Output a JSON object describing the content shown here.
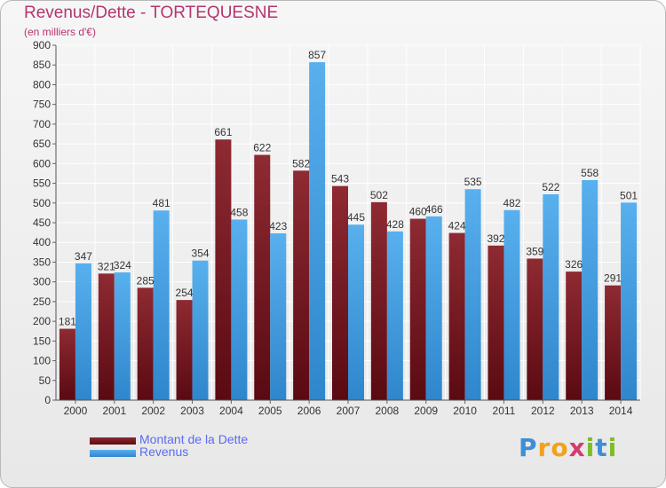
{
  "chart_data": {
    "type": "bar",
    "title": "Revenus/Dette - TORTEQUESNE",
    "subtitle": "(en milliers d'€)",
    "categories": [
      "2000",
      "2001",
      "2002",
      "2003",
      "2004",
      "2005",
      "2006",
      "2007",
      "2008",
      "2009",
      "2010",
      "2011",
      "2012",
      "2013",
      "2014"
    ],
    "series": [
      {
        "name": "Montant de la Dette",
        "color": "#7a1c24",
        "values": [
          181,
          321,
          285,
          254,
          661,
          622,
          582,
          543,
          502,
          460,
          424,
          392,
          359,
          326,
          291
        ]
      },
      {
        "name": "Revenus",
        "color": "#3f9ee0",
        "values": [
          347,
          324,
          481,
          354,
          458,
          423,
          857,
          445,
          428,
          466,
          535,
          482,
          522,
          558,
          501
        ]
      }
    ],
    "ylim": [
      0,
      900
    ],
    "yticks": [
      0,
      50,
      100,
      150,
      200,
      250,
      300,
      350,
      400,
      450,
      500,
      550,
      600,
      650,
      700,
      750,
      800,
      850,
      900
    ],
    "grid": true,
    "legend_position": "bottom-left"
  },
  "logo": {
    "letters": [
      "P",
      "r",
      "o",
      "x",
      "i",
      "t",
      "i"
    ],
    "colors": [
      "#3d8fd6",
      "#f2a21a",
      "#f2a21a",
      "#d63a6e",
      "#7cbd2a",
      "#3d8fd6",
      "#7cbd2a"
    ]
  }
}
